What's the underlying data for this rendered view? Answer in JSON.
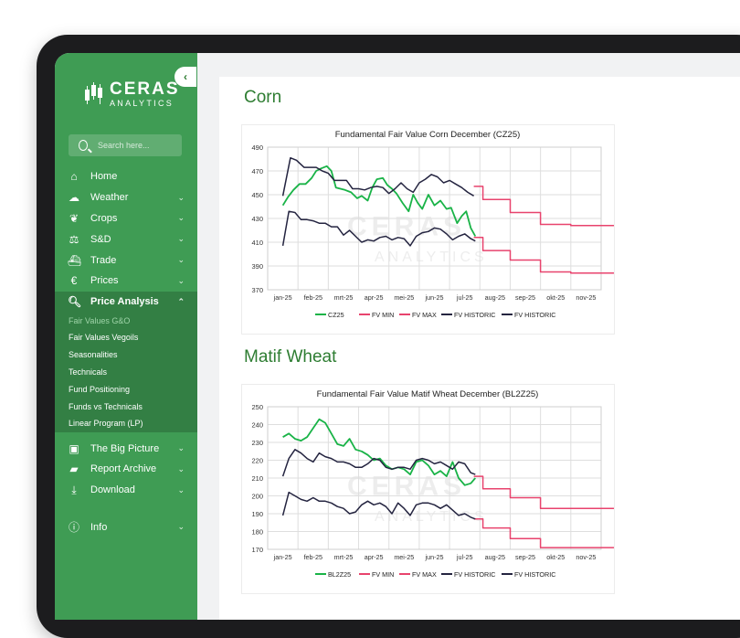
{
  "sidebar": {
    "logo": {
      "name": "CERAS",
      "subtitle": "ANALYTICS"
    },
    "search_placeholder": "Search here...",
    "nav": [
      {
        "label": "Home",
        "icon": "home-icon"
      },
      {
        "label": "Weather",
        "icon": "weather-icon"
      },
      {
        "label": "Crops",
        "icon": "sprout-icon"
      },
      {
        "label": "S&D",
        "icon": "balance-scale-icon"
      },
      {
        "label": "Trade",
        "icon": "ship-icon"
      },
      {
        "label": "Prices",
        "icon": "euro-icon"
      },
      {
        "label": "Price Analysis",
        "icon": "magnify-chart-icon",
        "expanded": true
      }
    ],
    "price_analysis_items": [
      "Fair Values G&O",
      "Fair Values Vegoils",
      "Seasonalities",
      "Technicals",
      "Fund Positioning",
      "Funds vs Technicals",
      "Linear Program (LP)"
    ],
    "nav_bottom": [
      {
        "label": "The Big Picture",
        "icon": "picture-icon"
      },
      {
        "label": "Report Archive",
        "icon": "folder-icon"
      },
      {
        "label": "Download",
        "icon": "download-icon"
      }
    ],
    "info_label": "Info"
  },
  "colors": {
    "sidebar": "#3f9c54",
    "accent": "#2e7d32",
    "series_green": "#19b347",
    "fv_bounds": "#e8436d",
    "historic": "#242440"
  },
  "sections": [
    {
      "title": "Corn"
    },
    {
      "title": "Matif Wheat"
    }
  ],
  "chart_data": [
    {
      "type": "line",
      "title": "Fundamental Fair Value Corn December (CZ25)",
      "x_labels": [
        "jan-25",
        "feb-25",
        "mrt-25",
        "apr-25",
        "mei-25",
        "jun-25",
        "jul-25",
        "aug-25",
        "sep-25",
        "okt-25",
        "nov-25"
      ],
      "yticks": [
        370,
        390,
        410,
        430,
        450,
        470,
        490
      ],
      "ylim": [
        370,
        490
      ],
      "grid": true,
      "legend_placement": "bottom",
      "series": [
        {
          "name": "CZ25",
          "color": "#19b347",
          "x": [
            0,
            0.17,
            0.35,
            0.55,
            0.75,
            0.95,
            1.1,
            1.25,
            1.45,
            1.6,
            1.75,
            1.9,
            2.05,
            2.25,
            2.45,
            2.6,
            2.8,
            2.95,
            3.1,
            3.3,
            3.45,
            3.6,
            3.75,
            3.95,
            4.15,
            4.3,
            4.45,
            4.6,
            4.8,
            5.0,
            5.2,
            5.4,
            5.55,
            5.75,
            5.9,
            6.05,
            6.2,
            6.35
          ],
          "values": [
            441,
            448,
            454,
            459,
            459,
            464,
            470,
            472,
            474,
            470,
            456,
            455,
            454,
            452,
            447,
            449,
            445,
            456,
            463,
            464,
            458,
            455,
            451,
            443,
            436,
            450,
            443,
            438,
            450,
            441,
            445,
            438,
            439,
            426,
            432,
            436,
            422,
            415
          ]
        },
        {
          "name": "FV MIN",
          "color": "#e8436d",
          "x": [
            6.3,
            6.6,
            6.6,
            7.5,
            7.5,
            8.5,
            8.5,
            9.5,
            9.5,
            10.95
          ],
          "values": [
            414,
            414,
            403,
            403,
            395,
            395,
            385,
            385,
            384,
            384
          ]
        },
        {
          "name": "FV MAX",
          "color": "#e8436d",
          "x": [
            6.3,
            6.6,
            6.6,
            7.5,
            7.5,
            8.5,
            8.5,
            9.5,
            9.5,
            10.95
          ],
          "values": [
            457,
            457,
            446,
            446,
            435,
            435,
            425,
            425,
            424,
            424
          ]
        },
        {
          "name": "FV HISTORIC",
          "color": "#242440",
          "x": [
            0,
            0.25,
            0.45,
            0.7,
            0.9,
            1.1,
            1.3,
            1.5,
            1.7,
            1.9,
            2.1,
            2.3,
            2.5,
            2.7,
            2.9,
            3.1,
            3.3,
            3.5,
            3.7,
            3.9,
            4.1,
            4.3,
            4.5,
            4.7,
            4.9,
            5.1,
            5.3,
            5.5,
            5.7,
            5.9,
            6.1,
            6.3
          ],
          "values": [
            449,
            481,
            479,
            473,
            473,
            473,
            470,
            468,
            462,
            462,
            462,
            455,
            455,
            454,
            456,
            457,
            456,
            451,
            455,
            460,
            455,
            452,
            460,
            463,
            467,
            465,
            460,
            462,
            459,
            456,
            452,
            449
          ]
        },
        {
          "name": "FV HISTORIC",
          "color": "#242440",
          "x": [
            0,
            0.2,
            0.4,
            0.6,
            0.8,
            1.0,
            1.2,
            1.4,
            1.6,
            1.8,
            2.0,
            2.2,
            2.4,
            2.6,
            2.8,
            3.0,
            3.2,
            3.4,
            3.6,
            3.8,
            4.0,
            4.2,
            4.4,
            4.6,
            4.8,
            5.0,
            5.2,
            5.4,
            5.6,
            5.8,
            6.0,
            6.2,
            6.35
          ],
          "values": [
            407,
            436,
            435,
            429,
            429,
            428,
            426,
            426,
            423,
            423,
            416,
            420,
            415,
            410,
            412,
            411,
            414,
            415,
            412,
            414,
            413,
            407,
            415,
            418,
            419,
            422,
            421,
            417,
            412,
            415,
            417,
            413,
            411
          ]
        }
      ]
    },
    {
      "type": "line",
      "title": "Fundamental Fair Value Matif Wheat December (BL2Z25)",
      "x_labels": [
        "jan-25",
        "feb-25",
        "mrt-25",
        "apr-25",
        "mei-25",
        "jun-25",
        "jul-25",
        "aug-25",
        "sep-25",
        "okt-25",
        "nov-25"
      ],
      "yticks": [
        170,
        180,
        190,
        200,
        210,
        220,
        230,
        240,
        250
      ],
      "ylim": [
        170,
        250
      ],
      "grid": true,
      "legend_placement": "bottom",
      "series": [
        {
          "name": "BL2Z25",
          "color": "#19b347",
          "x": [
            0,
            0.2,
            0.4,
            0.6,
            0.8,
            1.0,
            1.2,
            1.4,
            1.6,
            1.8,
            2.0,
            2.2,
            2.4,
            2.6,
            2.8,
            3.0,
            3.2,
            3.4,
            3.6,
            3.8,
            4.0,
            4.2,
            4.4,
            4.6,
            4.8,
            5.0,
            5.2,
            5.4,
            5.6,
            5.8,
            6.0,
            6.2,
            6.35
          ],
          "values": [
            233,
            235,
            232,
            231,
            233,
            238,
            243,
            241,
            235,
            229,
            228,
            232,
            226,
            225,
            223,
            220,
            221,
            217,
            215,
            216,
            215,
            212,
            219,
            220,
            217,
            212,
            214,
            211,
            219,
            210,
            206,
            207,
            210
          ]
        },
        {
          "name": "FV MIN",
          "color": "#e8436d",
          "x": [
            6.3,
            6.6,
            6.6,
            7.5,
            7.5,
            8.5,
            8.5,
            9.5,
            9.5,
            10.95
          ],
          "values": [
            187,
            187,
            182,
            182,
            176,
            176,
            171,
            171,
            171,
            171
          ]
        },
        {
          "name": "FV MAX",
          "color": "#e8436d",
          "x": [
            6.3,
            6.6,
            6.6,
            7.5,
            7.5,
            8.5,
            8.5,
            9.5,
            9.5,
            10.95
          ],
          "values": [
            211,
            211,
            204,
            204,
            199,
            199,
            193,
            193,
            193,
            193
          ]
        },
        {
          "name": "FV HISTORIC",
          "color": "#242440",
          "x": [
            0,
            0.2,
            0.4,
            0.6,
            0.8,
            1.0,
            1.2,
            1.4,
            1.6,
            1.8,
            2.0,
            2.2,
            2.4,
            2.6,
            2.8,
            3.0,
            3.2,
            3.4,
            3.6,
            3.8,
            4.0,
            4.2,
            4.4,
            4.6,
            4.8,
            5.0,
            5.2,
            5.4,
            5.6,
            5.8,
            6.0,
            6.2,
            6.35
          ],
          "values": [
            211,
            221,
            226,
            224,
            221,
            219,
            224,
            222,
            221,
            219,
            219,
            218,
            216,
            216,
            218,
            221,
            220,
            216,
            215,
            216,
            216,
            215,
            220,
            221,
            220,
            218,
            219,
            217,
            215,
            219,
            218,
            213,
            212
          ]
        },
        {
          "name": "FV HISTORIC",
          "color": "#242440",
          "x": [
            0,
            0.2,
            0.4,
            0.6,
            0.8,
            1.0,
            1.2,
            1.4,
            1.6,
            1.8,
            2.0,
            2.2,
            2.4,
            2.6,
            2.8,
            3.0,
            3.2,
            3.4,
            3.6,
            3.8,
            4.0,
            4.2,
            4.4,
            4.6,
            4.8,
            5.0,
            5.2,
            5.4,
            5.6,
            5.8,
            6.0,
            6.2,
            6.35
          ],
          "values": [
            189,
            202,
            200,
            198,
            197,
            199,
            197,
            197,
            196,
            194,
            193,
            190,
            191,
            195,
            197,
            195,
            196,
            194,
            190,
            196,
            193,
            189,
            195,
            196,
            196,
            195,
            193,
            195,
            192,
            189,
            190,
            188,
            187
          ]
        }
      ]
    }
  ]
}
